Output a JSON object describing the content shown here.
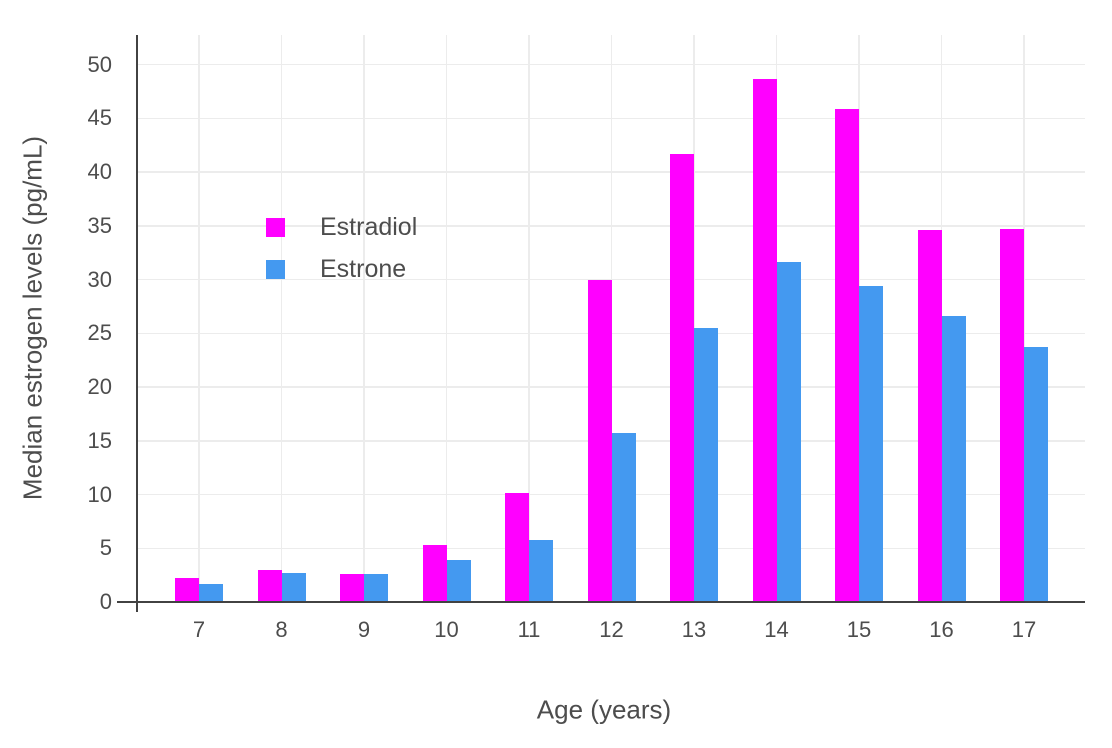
{
  "chart_data": {
    "type": "bar",
    "title": "",
    "xlabel": "Age (years)",
    "ylabel": "Median estrogen levels (pg/mL)",
    "categories": [
      "7",
      "8",
      "9",
      "10",
      "11",
      "12",
      "13",
      "14",
      "15",
      "16",
      "17"
    ],
    "series": [
      {
        "name": "Estradiol",
        "color": "#ff00ff",
        "values": [
          2.2,
          3.0,
          2.6,
          5.3,
          10.1,
          30.0,
          41.7,
          48.7,
          45.9,
          34.6,
          34.7
        ]
      },
      {
        "name": "Estrone",
        "color": "#4499f0",
        "values": [
          1.7,
          2.7,
          2.6,
          3.9,
          5.8,
          15.7,
          25.5,
          31.6,
          29.4,
          26.6,
          23.7
        ]
      }
    ],
    "yticks": [
      0,
      5,
      10,
      15,
      20,
      25,
      30,
      35,
      40,
      45,
      50
    ],
    "ylim": [
      0,
      52.75
    ],
    "grid": true,
    "legend_position": "inside-top-left",
    "colors": {
      "axis_line": "#424242",
      "gridline": "#ececec",
      "tick_mark": "#d9d9d9",
      "text": "#4d4d4d",
      "background": "#ffffff"
    }
  }
}
